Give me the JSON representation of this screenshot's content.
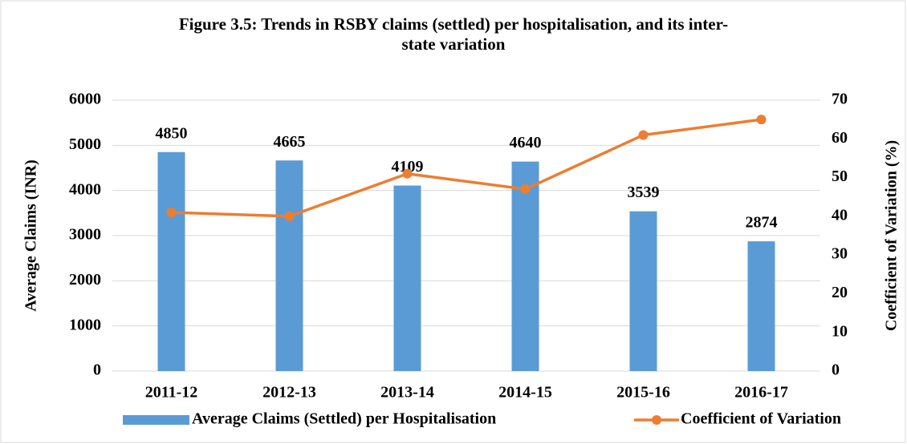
{
  "chart_data": {
    "type": "bar",
    "title": "Figure 3.5: Trends in  RSBY claims (settled) per hospitalisation, and its inter-state variation",
    "categories": [
      "2011-12",
      "2012-13",
      "2013-14",
      "2014-15",
      "2015-16",
      "2016-17"
    ],
    "series": [
      {
        "name": "Average Claims (Settled) per Hospitalisation",
        "type": "bar",
        "color": "#5b9bd5",
        "values": [
          4850,
          4665,
          4109,
          4640,
          3539,
          2874
        ]
      },
      {
        "name": "Coefficient of Variation",
        "type": "line",
        "axis": "y2",
        "color": "#ed7d31",
        "values": [
          41,
          40,
          51,
          47,
          61,
          65
        ]
      }
    ],
    "y_label": "Average Claims (INR)",
    "y2_label": "Coefficient of Variation (%)",
    "ylim": [
      0,
      6000
    ],
    "yticks": [
      0,
      1000,
      2000,
      3000,
      4000,
      5000,
      6000
    ],
    "y2lim": [
      0,
      70
    ],
    "y2ticks": [
      0,
      10,
      20,
      30,
      40,
      50,
      60,
      70
    ],
    "grid": true,
    "legend": "bottom"
  }
}
